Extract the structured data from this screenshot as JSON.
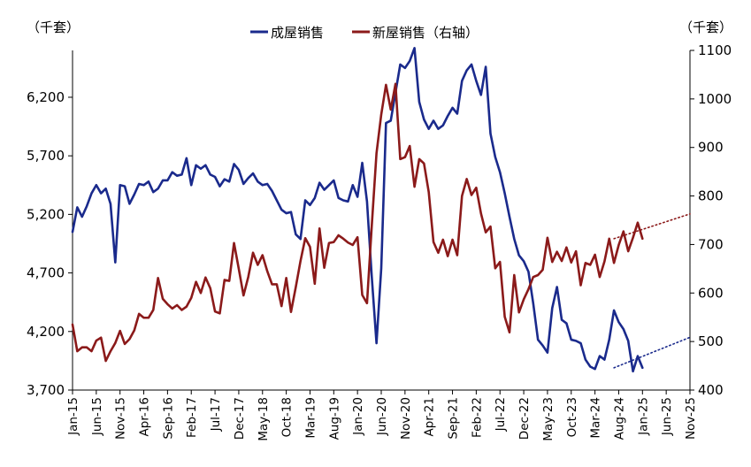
{
  "chart_data": {
    "type": "line",
    "title": "",
    "legend": {
      "position": "top-center",
      "entries": [
        "成屋销售",
        "新屋销售（右轴）"
      ]
    },
    "left_axis": {
      "unit_label": "（千套）",
      "ylim": [
        3700,
        6600
      ],
      "ticks": [
        3700,
        4200,
        4700,
        5200,
        5700,
        6200
      ]
    },
    "right_axis": {
      "unit_label": "（千套）",
      "ylim": [
        400,
        1100
      ],
      "ticks": [
        400,
        500,
        600,
        700,
        800,
        900,
        1000,
        1100
      ]
    },
    "x_range": {
      "start": "Jan-15",
      "end": "Nov-25",
      "months": 131
    },
    "x_tick_labels": [
      "Jan-15",
      "Jun-15",
      "Nov-15",
      "Apr-16",
      "Sep-16",
      "Feb-17",
      "Jul-17",
      "Dec-17",
      "May-18",
      "Oct-18",
      "Mar-19",
      "Aug-19",
      "Jan-20",
      "Jun-20",
      "Nov-20",
      "Apr-21",
      "Sep-21",
      "Feb-22",
      "Jul-22",
      "Dec-22",
      "May-23",
      "Oct-23",
      "Mar-24",
      "Aug-24",
      "Jan-25",
      "Jun-25",
      "Nov-25"
    ],
    "series": [
      {
        "name": "成屋销售",
        "axis": "left",
        "color": "#1a2a8c",
        "start": "Jan-15",
        "values": [
          5050,
          5260,
          5180,
          5270,
          5380,
          5450,
          5380,
          5420,
          5290,
          4790,
          5450,
          5440,
          5290,
          5370,
          5460,
          5450,
          5480,
          5390,
          5420,
          5490,
          5490,
          5560,
          5530,
          5540,
          5680,
          5450,
          5620,
          5590,
          5620,
          5540,
          5520,
          5440,
          5500,
          5480,
          5630,
          5580,
          5460,
          5510,
          5550,
          5480,
          5450,
          5460,
          5400,
          5320,
          5240,
          5210,
          5220,
          5030,
          4990,
          5320,
          5280,
          5340,
          5470,
          5410,
          5450,
          5490,
          5340,
          5320,
          5310,
          5450,
          5350,
          5640,
          5310,
          4670,
          4100,
          4740,
          5980,
          6000,
          6240,
          6480,
          6450,
          6510,
          6620,
          6160,
          6010,
          5930,
          6000,
          5930,
          5960,
          6040,
          6110,
          6060,
          6340,
          6430,
          6480,
          6340,
          6220,
          6460,
          5890,
          5690,
          5560,
          5380,
          5180,
          4990,
          4850,
          4800,
          4710,
          4440,
          4130,
          4080,
          4020,
          4400,
          4580,
          4300,
          4270,
          4130,
          4120,
          4100,
          3960,
          3900,
          3880,
          3990,
          3960,
          4130,
          4380,
          4280,
          4220,
          4120,
          3860,
          3990,
          3890
        ]
      },
      {
        "name": "新屋销售（右轴）",
        "axis": "right",
        "color": "#8b1a1a",
        "start": "Jan-15",
        "values": [
          535,
          480,
          488,
          488,
          480,
          502,
          508,
          460,
          480,
          497,
          522,
          495,
          505,
          523,
          557,
          549,
          549,
          565,
          631,
          588,
          577,
          568,
          575,
          565,
          572,
          590,
          623,
          600,
          632,
          610,
          562,
          558,
          627,
          625,
          703,
          650,
          595,
          633,
          683,
          658,
          678,
          645,
          618,
          618,
          573,
          631,
          561,
          612,
          666,
          713,
          695,
          619,
          733,
          652,
          703,
          705,
          719,
          712,
          704,
          699,
          715,
          596,
          579,
          738,
          888,
          968,
          1029,
          978,
          1031,
          876,
          880,
          903,
          819,
          876,
          867,
          808,
          705,
          683,
          710,
          676,
          710,
          678,
          800,
          835,
          802,
          817,
          764,
          725,
          737,
          651,
          664,
          551,
          519,
          637,
          560,
          587,
          608,
          633,
          637,
          648,
          714,
          664,
          685,
          666,
          694,
          663,
          686,
          616,
          662,
          658,
          679,
          633,
          665,
          712,
          662,
          699,
          727,
          686,
          714,
          745,
          712
        ]
      },
      {
        "name": "成屋销售 projection",
        "axis": "left",
        "style": "dotted",
        "color": "#1a2a8c",
        "points": [
          {
            "x": "Jul-24",
            "y": 3890
          },
          {
            "x": "Nov-25",
            "y": 4150
          }
        ]
      },
      {
        "name": "新屋销售 projection",
        "axis": "right",
        "style": "dotted",
        "color": "#8b1a1a",
        "points": [
          {
            "x": "Jul-24",
            "y": 712
          },
          {
            "x": "Nov-25",
            "y": 763
          }
        ]
      }
    ]
  }
}
